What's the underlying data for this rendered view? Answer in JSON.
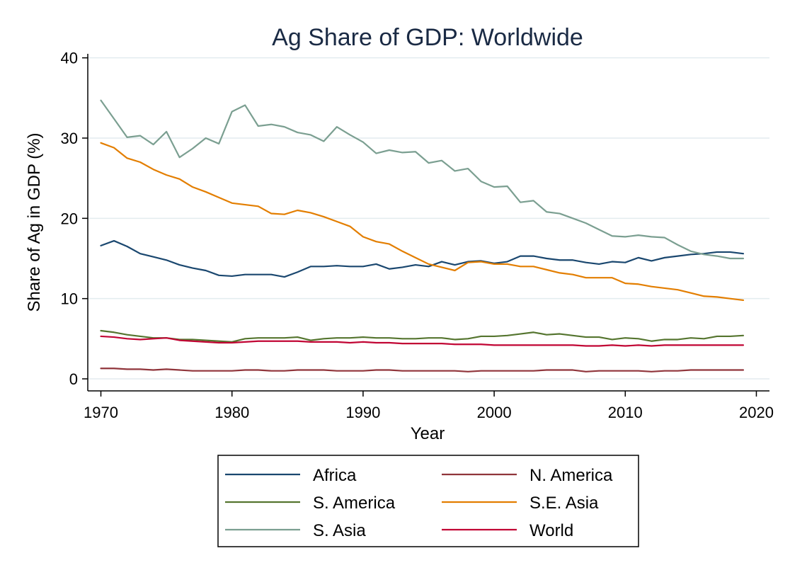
{
  "chart_data": {
    "type": "line",
    "title": "Ag Share of GDP: Worldwide",
    "xlabel": "Year",
    "ylabel": "Share of Ag in GDP (%)",
    "xlim": [
      1969,
      2021
    ],
    "ylim": [
      -1.5,
      40.5
    ],
    "xticks": [
      1970,
      1980,
      1990,
      2000,
      2010,
      2020
    ],
    "yticks": [
      0,
      10,
      20,
      30,
      40
    ],
    "grid": true,
    "legend_position": "bottom",
    "x": [
      1970,
      1971,
      1972,
      1973,
      1974,
      1975,
      1976,
      1977,
      1978,
      1979,
      1980,
      1981,
      1982,
      1983,
      1984,
      1985,
      1986,
      1987,
      1988,
      1989,
      1990,
      1991,
      1992,
      1993,
      1994,
      1995,
      1996,
      1997,
      1998,
      1999,
      2000,
      2001,
      2002,
      2003,
      2004,
      2005,
      2006,
      2007,
      2008,
      2009,
      2010,
      2011,
      2012,
      2013,
      2014,
      2015,
      2016,
      2017,
      2018,
      2019
    ],
    "series": [
      {
        "name": "Africa",
        "color": "#1a476f",
        "values": [
          16.6,
          17.2,
          16.5,
          15.6,
          15.2,
          14.8,
          14.2,
          13.8,
          13.5,
          12.9,
          12.8,
          13.0,
          13.0,
          13.0,
          12.7,
          13.3,
          14.0,
          14.0,
          14.1,
          14.0,
          14.0,
          14.3,
          13.7,
          13.9,
          14.2,
          14.0,
          14.6,
          14.2,
          14.6,
          14.7,
          14.4,
          14.6,
          15.3,
          15.3,
          15.0,
          14.8,
          14.8,
          14.5,
          14.3,
          14.6,
          14.5,
          15.1,
          14.7,
          15.1,
          15.3,
          15.5,
          15.6,
          15.8,
          15.8,
          15.6
        ]
      },
      {
        "name": "S. America",
        "color": "#55752f",
        "values": [
          6.0,
          5.8,
          5.5,
          5.3,
          5.1,
          5.1,
          4.9,
          4.9,
          4.8,
          4.7,
          4.6,
          5.0,
          5.1,
          5.1,
          5.1,
          5.2,
          4.8,
          5.0,
          5.1,
          5.1,
          5.2,
          5.1,
          5.1,
          5.0,
          5.0,
          5.1,
          5.1,
          4.9,
          5.0,
          5.3,
          5.3,
          5.4,
          5.6,
          5.8,
          5.5,
          5.6,
          5.4,
          5.2,
          5.2,
          4.9,
          5.1,
          5.0,
          4.7,
          4.9,
          4.9,
          5.1,
          5.0,
          5.3,
          5.3,
          5.4
        ]
      },
      {
        "name": "S. Asia",
        "color": "#7b9f91",
        "values": [
          34.7,
          32.4,
          30.1,
          30.3,
          29.2,
          30.8,
          27.6,
          28.7,
          30.0,
          29.3,
          33.3,
          34.1,
          31.5,
          31.7,
          31.4,
          30.7,
          30.4,
          29.6,
          31.4,
          30.4,
          29.5,
          28.1,
          28.5,
          28.2,
          28.3,
          26.9,
          27.2,
          25.9,
          26.2,
          24.6,
          23.9,
          24.0,
          22.0,
          22.2,
          20.8,
          20.6,
          20.0,
          19.4,
          18.6,
          17.8,
          17.7,
          17.9,
          17.7,
          17.6,
          16.7,
          15.9,
          15.5,
          15.3,
          15.0,
          15.0
        ]
      },
      {
        "name": "N. America",
        "color": "#90353b",
        "values": [
          1.3,
          1.3,
          1.2,
          1.2,
          1.1,
          1.2,
          1.1,
          1.0,
          1.0,
          1.0,
          1.0,
          1.1,
          1.1,
          1.0,
          1.0,
          1.1,
          1.1,
          1.1,
          1.0,
          1.0,
          1.0,
          1.1,
          1.1,
          1.0,
          1.0,
          1.0,
          1.0,
          1.0,
          0.9,
          1.0,
          1.0,
          1.0,
          1.0,
          1.0,
          1.1,
          1.1,
          1.1,
          0.9,
          1.0,
          1.0,
          1.0,
          1.0,
          0.9,
          1.0,
          1.0,
          1.1,
          1.1,
          1.1,
          1.1,
          1.1
        ]
      },
      {
        "name": "S.E. Asia",
        "color": "#e37e00",
        "values": [
          29.4,
          28.8,
          27.5,
          27.0,
          26.1,
          25.4,
          24.9,
          23.9,
          23.3,
          22.6,
          21.9,
          21.7,
          21.5,
          20.6,
          20.5,
          21.0,
          20.7,
          20.2,
          19.6,
          19.0,
          17.7,
          17.1,
          16.8,
          15.9,
          15.1,
          14.3,
          13.9,
          13.5,
          14.5,
          14.6,
          14.3,
          14.3,
          14.0,
          14.0,
          13.6,
          13.2,
          13.0,
          12.6,
          12.6,
          12.6,
          11.9,
          11.8,
          11.5,
          11.3,
          11.1,
          10.7,
          10.3,
          10.2,
          10.0,
          9.8
        ]
      },
      {
        "name": "World",
        "color": "#c10534",
        "values": [
          5.3,
          5.2,
          5.0,
          4.9,
          5.0,
          5.1,
          4.8,
          4.7,
          4.6,
          4.5,
          4.5,
          4.6,
          4.7,
          4.7,
          4.7,
          4.7,
          4.6,
          4.6,
          4.6,
          4.5,
          4.6,
          4.5,
          4.5,
          4.4,
          4.4,
          4.4,
          4.4,
          4.3,
          4.3,
          4.3,
          4.2,
          4.2,
          4.2,
          4.2,
          4.2,
          4.2,
          4.2,
          4.1,
          4.1,
          4.2,
          4.1,
          4.2,
          4.1,
          4.2,
          4.2,
          4.2,
          4.2,
          4.2,
          4.2,
          4.2
        ]
      }
    ],
    "legend_order": [
      "Africa",
      "N. America",
      "S. America",
      "S.E. Asia",
      "S. Asia",
      "World"
    ]
  }
}
